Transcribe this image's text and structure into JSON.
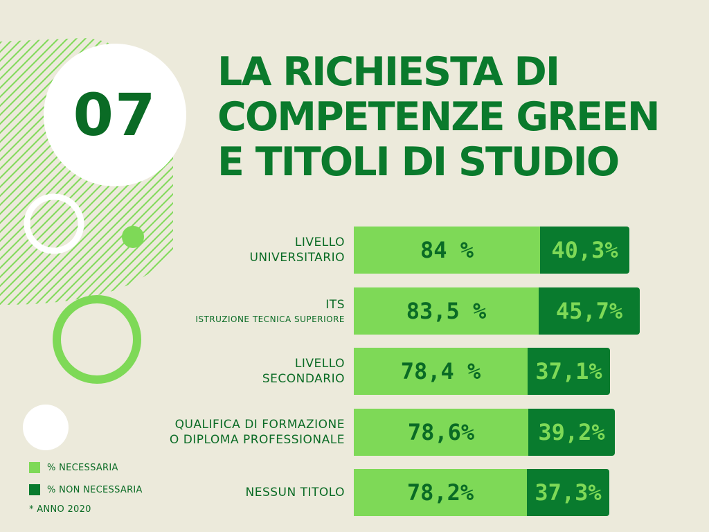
{
  "badge": {
    "number": "07"
  },
  "title_lines": [
    "LA RICHIESTA DI",
    "COMPETENZE GREEN",
    "E TITOLI DI STUDIO"
  ],
  "colors": {
    "background": "#eceadb",
    "light_green": "#7ed957",
    "dark_green": "#097b2e",
    "text_green": "#0a6b25"
  },
  "chart_data": {
    "type": "bar",
    "orientation": "horizontal",
    "stacked": true,
    "categories": [
      {
        "label": "LIVELLO\nUNIVERSITARIO",
        "sub": ""
      },
      {
        "label": "ITS",
        "sub": "ISTRUZIONE TECNICA SUPERIORE"
      },
      {
        "label": "LIVELLO\nSECONDARIO",
        "sub": ""
      },
      {
        "label": "QUALIFICA DI FORMAZIONE\nO DIPLOMA PROFESSIONALE",
        "sub": ""
      },
      {
        "label": "NESSUN TITOLO",
        "sub": ""
      }
    ],
    "series": [
      {
        "name": "% NECESSARIA",
        "color": "#7ed957",
        "values": [
          84,
          83.5,
          78.4,
          78.6,
          78.2
        ],
        "display": [
          "84 %",
          "83,5 %",
          "78,4 %",
          "78,6%",
          "78,2%"
        ]
      },
      {
        "name": "% NON NECESSARIA",
        "color": "#097b2e",
        "values": [
          40.3,
          45.7,
          37.1,
          39.2,
          37.3
        ],
        "display": [
          "40,3%",
          "45,7%",
          "37,1%",
          "39,2%",
          "37,3%"
        ]
      }
    ]
  },
  "legend": [
    {
      "label": "% NECESSARIA",
      "color": "#7ed957"
    },
    {
      "label": "% NON NECESSARIA",
      "color": "#097b2e"
    }
  ],
  "footnote": "* ANNO 2020"
}
